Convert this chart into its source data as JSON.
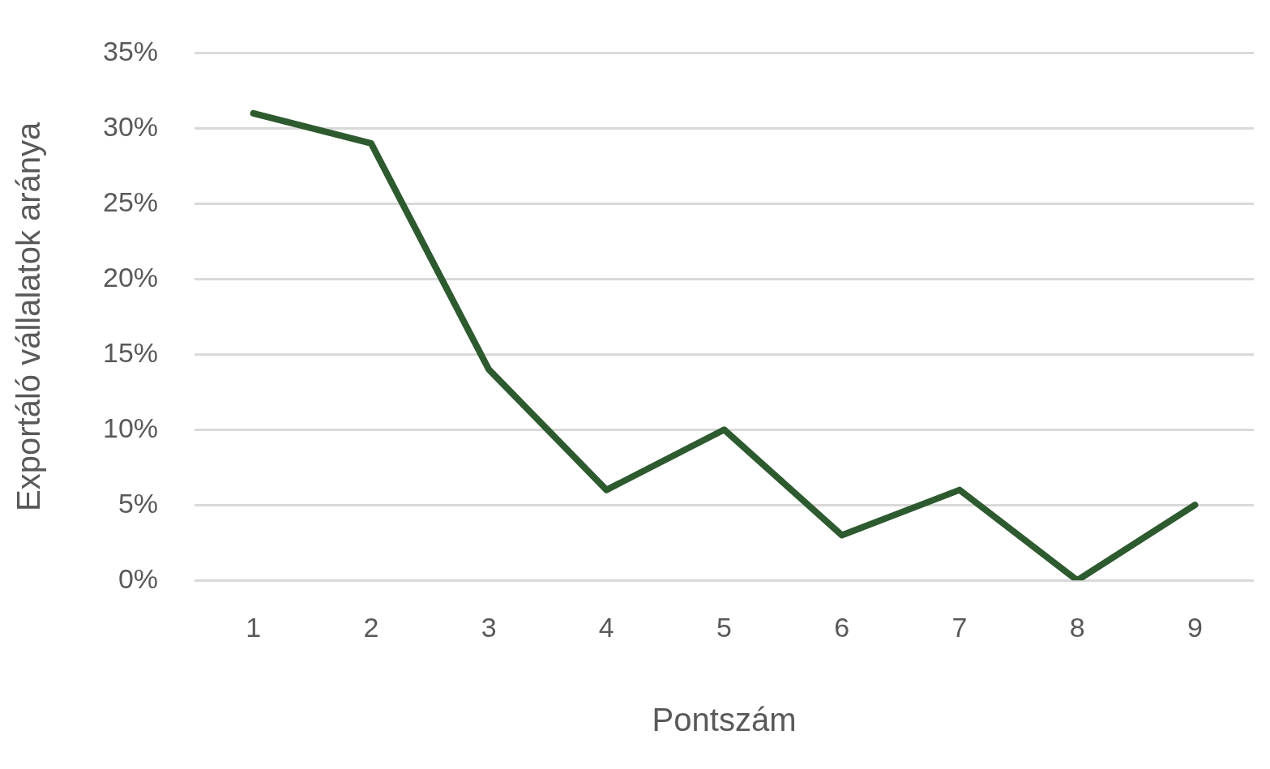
{
  "chart_data": {
    "type": "line",
    "xlabel": "Pontszám",
    "ylabel": "Exportáló vállalatok aránya",
    "categories": [
      "1",
      "2",
      "3",
      "4",
      "5",
      "6",
      "7",
      "8",
      "9"
    ],
    "series": [
      {
        "color": "#2d5a2f",
        "values": [
          31,
          29,
          14,
          6,
          10,
          3,
          6,
          0,
          5
        ]
      }
    ],
    "ylim": [
      0,
      35
    ],
    "yticks": [
      {
        "value": 0,
        "label": "0%"
      },
      {
        "value": 5,
        "label": "5%"
      },
      {
        "value": 10,
        "label": "10%"
      },
      {
        "value": 15,
        "label": "15%"
      },
      {
        "value": 20,
        "label": "20%"
      },
      {
        "value": 25,
        "label": "25%"
      },
      {
        "value": 30,
        "label": "30%"
      },
      {
        "value": 35,
        "label": "35%"
      }
    ],
    "grid": "y",
    "legend": false,
    "marker": "none",
    "line_style": "solid"
  }
}
